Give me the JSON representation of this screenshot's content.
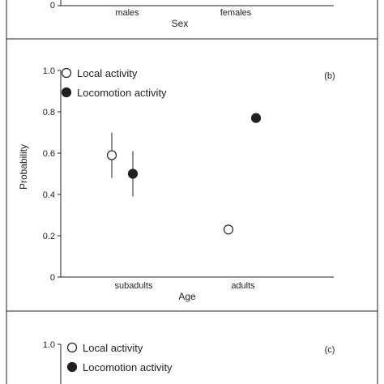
{
  "chart_data": [
    {
      "panel": "a",
      "type": "scatter",
      "xlabel": "Sex",
      "categories": [
        "males",
        "females"
      ],
      "y_ticks_visible": [
        "0"
      ],
      "ylim": [
        0,
        1.0
      ]
    },
    {
      "panel": "b",
      "type": "scatter",
      "panel_label": "(b)",
      "xlabel": "Age",
      "ylabel": "Probability",
      "categories": [
        "subadults",
        "adults"
      ],
      "ylim": [
        0,
        1.0
      ],
      "yticks": [
        0,
        0.2,
        0.4,
        0.6,
        0.8,
        1.0
      ],
      "ytick_labels": [
        "0",
        "0.2",
        "0.4",
        "0.6",
        "0.8",
        "1.0"
      ],
      "legend_position": "top-left",
      "series": [
        {
          "name": "Local activity",
          "marker": "open-circle",
          "values": [
            0.59,
            0.23
          ],
          "err_low": [
            0.48,
            null
          ],
          "err_high": [
            0.7,
            null
          ]
        },
        {
          "name": "Locomotion activity",
          "marker": "filled-circle",
          "values": [
            0.5,
            0.77
          ],
          "err_low": [
            0.39,
            null
          ],
          "err_high": [
            0.61,
            null
          ]
        }
      ]
    },
    {
      "panel": "c",
      "type": "scatter",
      "panel_label": "(c)",
      "ylim": [
        0,
        1.0
      ],
      "y_ticks_visible": [
        "1.0"
      ],
      "legend_position": "top-left",
      "series": [
        {
          "name": "Local activity",
          "marker": "open-circle"
        },
        {
          "name": "Locomotion activity",
          "marker": "filled-circle"
        }
      ]
    }
  ],
  "colors": {
    "ink": "#231f20",
    "background": "#ffffff"
  }
}
